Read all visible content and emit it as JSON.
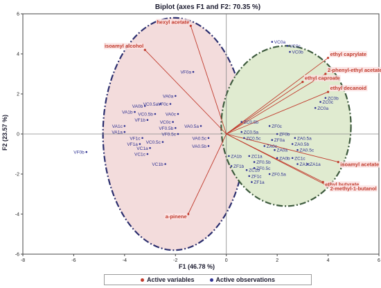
{
  "chart_data": {
    "type": "scatter",
    "title": "Biplot (axes F1 and F2: 70.35 %)",
    "xlabel": "F1 (46.78 %)",
    "ylabel": "F2 (23.57 %)",
    "xlim": [
      -8,
      6
    ],
    "ylim": [
      -6,
      6
    ],
    "x_ticks": [
      -8,
      -6,
      -4,
      -2,
      0,
      2,
      4,
      6
    ],
    "y_ticks": [
      -6,
      -4,
      -2,
      0,
      2,
      4,
      6
    ],
    "grid": false,
    "legend_position": "bottom",
    "legend": [
      {
        "label": "Active variables",
        "color": "#c0392b"
      },
      {
        "label": "Active observations",
        "color": "#2e3192"
      }
    ],
    "colors": {
      "variables": "#c0392b",
      "observations": "#2e3192",
      "ellipse_left_fill": "#f3dcdc",
      "ellipse_right_fill": "#e0ebd0",
      "ellipse_left_stroke": "#2b2e6e",
      "ellipse_right_stroke": "#3d5a3d"
    },
    "ellipses": [
      {
        "cx": -2.05,
        "cy": 0.0,
        "rx": 2.8,
        "ry": 5.8,
        "fill": "left"
      },
      {
        "cx": 2.35,
        "cy": 0.4,
        "rx": 2.55,
        "ry": 4.0,
        "fill": "right"
      }
    ],
    "variables": [
      {
        "label": "hexyl acetate",
        "x": -1.4,
        "y": 5.4
      },
      {
        "label": "isoamyl alcohol",
        "x": -3.2,
        "y": 4.2
      },
      {
        "label": "ethyl caprylate",
        "x": 4.0,
        "y": 3.8
      },
      {
        "label": "2-phenyl-ethyl acetate",
        "x": 3.9,
        "y": 3.0
      },
      {
        "label": "ethyl caproate",
        "x": 3.0,
        "y": 2.6
      },
      {
        "label": "ethyl decanoid",
        "x": 4.0,
        "y": 2.1
      },
      {
        "label": "isoamyl acetate",
        "x": 4.4,
        "y": -1.4
      },
      {
        "label": "ethyl butyrate",
        "x": 3.8,
        "y": -2.4
      },
      {
        "label": "2-methyl-1-butanol",
        "x": 4.0,
        "y": -2.6
      },
      {
        "label": "a-pinene",
        "x": -1.5,
        "y": -4.0
      }
    ],
    "observations": [
      {
        "label": "VF0a",
        "x": -1.3,
        "y": 3.1
      },
      {
        "label": "VA0a",
        "x": -2.0,
        "y": 1.9
      },
      {
        "label": "VF0c",
        "x": -2.2,
        "y": 1.5
      },
      {
        "label": "VC0.5a",
        "x": -2.6,
        "y": 1.5
      },
      {
        "label": "VA0b",
        "x": -3.2,
        "y": 1.4
      },
      {
        "label": "VA1b",
        "x": -3.6,
        "y": 1.1
      },
      {
        "label": "VC0.5b",
        "x": -2.8,
        "y": 1.0
      },
      {
        "label": "VA0c",
        "x": -1.9,
        "y": 1.0
      },
      {
        "label": "VF1b",
        "x": -3.1,
        "y": 0.7
      },
      {
        "label": "VC0c",
        "x": -2.1,
        "y": 0.6
      },
      {
        "label": "VA1c",
        "x": -4.0,
        "y": 0.4
      },
      {
        "label": "VF0.5b",
        "x": -2.0,
        "y": 0.3
      },
      {
        "label": "VA0.5a",
        "x": -1.0,
        "y": 0.4
      },
      {
        "label": "VA1a",
        "x": -4.0,
        "y": 0.1
      },
      {
        "label": "VF0.5c",
        "x": -1.9,
        "y": 0.0
      },
      {
        "label": "VF1c",
        "x": -3.3,
        "y": -0.2
      },
      {
        "label": "VA0.5c",
        "x": -0.7,
        "y": -0.2
      },
      {
        "label": "VF1a",
        "x": -3.4,
        "y": -0.5
      },
      {
        "label": "VC0.5c",
        "x": -2.5,
        "y": -0.4
      },
      {
        "label": "VA0.5b",
        "x": -0.7,
        "y": -0.6
      },
      {
        "label": "VC1a",
        "x": -3.0,
        "y": -0.7
      },
      {
        "label": "VC1c",
        "x": -3.1,
        "y": -1.0
      },
      {
        "label": "VC1b",
        "x": -2.4,
        "y": -1.5
      },
      {
        "label": "VF0b",
        "x": -5.5,
        "y": -0.9
      },
      {
        "label": "VC0a",
        "x": 1.8,
        "y": 4.6
      },
      {
        "label": "VC0c",
        "x": 2.4,
        "y": 4.4
      },
      {
        "label": "VC0b",
        "x": 2.5,
        "y": 4.1
      },
      {
        "label": "ZC0b",
        "x": 3.9,
        "y": 1.8
      },
      {
        "label": "ZC0c",
        "x": 3.7,
        "y": 1.6
      },
      {
        "label": "ZC0a",
        "x": 3.5,
        "y": 1.3
      },
      {
        "label": "ZC0.5b",
        "x": 0.6,
        "y": 0.6
      },
      {
        "label": "ZF0c",
        "x": 1.7,
        "y": 0.4
      },
      {
        "label": "ZC0.5a",
        "x": 0.6,
        "y": 0.1
      },
      {
        "label": "ZF0b",
        "x": 2.0,
        "y": 0.0
      },
      {
        "label": "ZA0.5a",
        "x": 2.7,
        "y": -0.2
      },
      {
        "label": "ZC0.5c",
        "x": 0.7,
        "y": -0.2
      },
      {
        "label": "ZF0a",
        "x": 1.8,
        "y": -0.3
      },
      {
        "label": "ZA0.5b",
        "x": 2.6,
        "y": -0.5
      },
      {
        "label": "ZA0c",
        "x": 1.5,
        "y": -0.6
      },
      {
        "label": "ZA0a",
        "x": 1.9,
        "y": -0.8
      },
      {
        "label": "ZA0.5c",
        "x": 2.8,
        "y": -0.8
      },
      {
        "label": "ZA1b",
        "x": 0.1,
        "y": -1.1
      },
      {
        "label": "ZC1a",
        "x": 0.9,
        "y": -1.1
      },
      {
        "label": "ZA0b",
        "x": 2.0,
        "y": -1.2
      },
      {
        "label": "ZC1c",
        "x": 2.6,
        "y": -1.2
      },
      {
        "label": "ZF0.5b",
        "x": 1.1,
        "y": -1.4
      },
      {
        "label": "ZF1b",
        "x": 0.2,
        "y": -1.6
      },
      {
        "label": "ZA1c",
        "x": 2.8,
        "y": -1.5
      },
      {
        "label": "ZA1a",
        "x": 3.2,
        "y": -1.5
      },
      {
        "label": "ZC1b",
        "x": 0.8,
        "y": -1.8
      },
      {
        "label": "ZF0.5c",
        "x": 1.1,
        "y": -1.7
      },
      {
        "label": "ZF1c",
        "x": 0.9,
        "y": -2.1
      },
      {
        "label": "ZF0.5a",
        "x": 1.7,
        "y": -2.0
      },
      {
        "label": "ZF1a",
        "x": 1.0,
        "y": -2.4
      }
    ]
  }
}
